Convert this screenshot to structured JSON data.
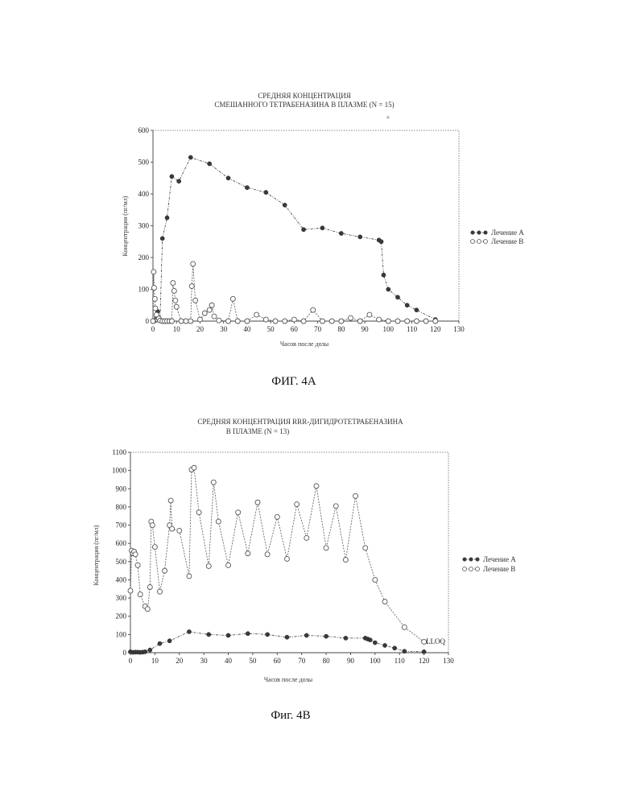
{
  "figures": [
    {
      "caption": "ФИГ. 4А",
      "title_lines": [
        "СРЕДНЯЯ КОНЦЕНТРАЦИЯ",
        "СМЕШАННОГО ТЕТРАБЕНАЗИНА В ПЛАЗМЕ (N = 15)"
      ],
      "stray_mark": "▵"
    },
    {
      "caption": "Фиг. 4В",
      "title_lines": [
        "СРЕДНЯЯ КОНЦЕНТРАЦИЯ RRR-ДИГИДРОТЕТРАБЕНАЗИНА",
        "В ПЛАЗМЕ (N = 13)"
      ],
      "annotation": "LLOQ"
    }
  ],
  "colors": {
    "series_a": "#3a3a3a",
    "series_b": "#555555",
    "frame": "#666666"
  },
  "chart_data": [
    {
      "type": "line",
      "title": "СРЕДНЯЯ КОНЦЕНТРАЦИЯ СМЕШАННОГО ТЕТРАБЕНАЗИНА В ПЛАЗМЕ (N = 15)",
      "xlabel": "Часов после дозы",
      "ylabel": "Концентрация (пг/мл)",
      "xlim": [
        0,
        130
      ],
      "ylim": [
        0,
        600
      ],
      "xticks": [
        0,
        10,
        20,
        30,
        40,
        50,
        60,
        70,
        80,
        90,
        100,
        110,
        120,
        130
      ],
      "yticks": [
        0,
        100,
        200,
        300,
        400,
        500,
        600
      ],
      "grid": false,
      "legend_position": "right",
      "series": [
        {
          "name": "Лечение А",
          "marker": "filled",
          "x": [
            0,
            0.5,
            1,
            1.5,
            2,
            3,
            4,
            6,
            8,
            11,
            16,
            24,
            32,
            40,
            48,
            56,
            64,
            72,
            80,
            88,
            96,
            97,
            98,
            100,
            104,
            108,
            112,
            120
          ],
          "y": [
            0,
            0,
            2,
            10,
            30,
            5,
            260,
            325,
            455,
            440,
            515,
            495,
            450,
            420,
            405,
            365,
            288,
            293,
            276,
            265,
            255,
            250,
            145,
            100,
            75,
            50,
            35,
            5
          ]
        },
        {
          "name": "Лечение В",
          "marker": "open",
          "x": [
            0,
            0.3,
            0.5,
            0.8,
            1,
            1.5,
            2,
            2.5,
            3,
            4,
            5,
            6,
            7,
            8,
            8.5,
            9,
            9.5,
            10,
            12,
            14,
            16,
            16.5,
            17,
            18,
            20,
            22,
            24,
            25,
            26,
            28,
            32,
            34,
            36,
            40,
            44,
            48,
            52,
            56,
            60,
            64,
            68,
            72,
            76,
            80,
            84,
            88,
            92,
            96,
            100,
            104,
            108,
            112,
            116,
            120
          ],
          "y": [
            0,
            155,
            105,
            70,
            40,
            20,
            5,
            8,
            2,
            0,
            0,
            0,
            0,
            0,
            120,
            95,
            65,
            45,
            0,
            0,
            0,
            110,
            180,
            65,
            5,
            25,
            35,
            50,
            15,
            2,
            0,
            70,
            0,
            0,
            20,
            5,
            0,
            0,
            5,
            0,
            35,
            0,
            0,
            0,
            10,
            0,
            20,
            5,
            0,
            0,
            0,
            0,
            0,
            0
          ]
        }
      ]
    },
    {
      "type": "line",
      "title": "СРЕДНЯЯ КОНЦЕНТРАЦИЯ RRR-ДИГИДРОТЕТРАБЕНАЗИНА В ПЛАЗМЕ (N = 13)",
      "xlabel": "Часов после дозы",
      "ylabel": "Концентрация (пг/мл)",
      "xlim": [
        0,
        130
      ],
      "ylim": [
        0,
        1100
      ],
      "xticks": [
        0,
        10,
        20,
        30,
        40,
        50,
        60,
        70,
        80,
        90,
        100,
        110,
        120,
        130
      ],
      "yticks": [
        0,
        100,
        200,
        300,
        400,
        500,
        600,
        700,
        800,
        900,
        1000,
        1100
      ],
      "grid": false,
      "legend_position": "right",
      "series": [
        {
          "name": "Лечение А",
          "marker": "filled",
          "x": [
            0,
            1,
            2,
            3,
            4,
            5,
            6,
            8,
            12,
            16,
            24,
            32,
            40,
            48,
            56,
            64,
            72,
            80,
            88,
            96,
            97,
            98,
            100,
            104,
            108,
            112,
            120
          ],
          "y": [
            5,
            2,
            3,
            3,
            2,
            3,
            5,
            15,
            50,
            65,
            115,
            100,
            95,
            105,
            100,
            85,
            95,
            90,
            80,
            80,
            75,
            70,
            55,
            40,
            25,
            8,
            5
          ]
        },
        {
          "name": "Лечение В",
          "marker": "open",
          "x": [
            0,
            0.5,
            1,
            1.5,
            2,
            3,
            4,
            6,
            7,
            8,
            8.5,
            9,
            10,
            12,
            14,
            16,
            16.5,
            17,
            20,
            24,
            25,
            26,
            28,
            32,
            34,
            36,
            40,
            44,
            48,
            52,
            56,
            60,
            64,
            68,
            72,
            76,
            80,
            84,
            88,
            92,
            96,
            100,
            104,
            112,
            120
          ],
          "y": [
            340,
            560,
            545,
            555,
            540,
            480,
            320,
            255,
            240,
            360,
            720,
            700,
            580,
            335,
            450,
            700,
            835,
            680,
            670,
            420,
            1005,
            1015,
            770,
            475,
            935,
            720,
            480,
            770,
            545,
            825,
            540,
            745,
            515,
            815,
            630,
            915,
            575,
            805,
            510,
            860,
            575,
            400,
            280,
            140,
            60
          ]
        }
      ]
    }
  ]
}
